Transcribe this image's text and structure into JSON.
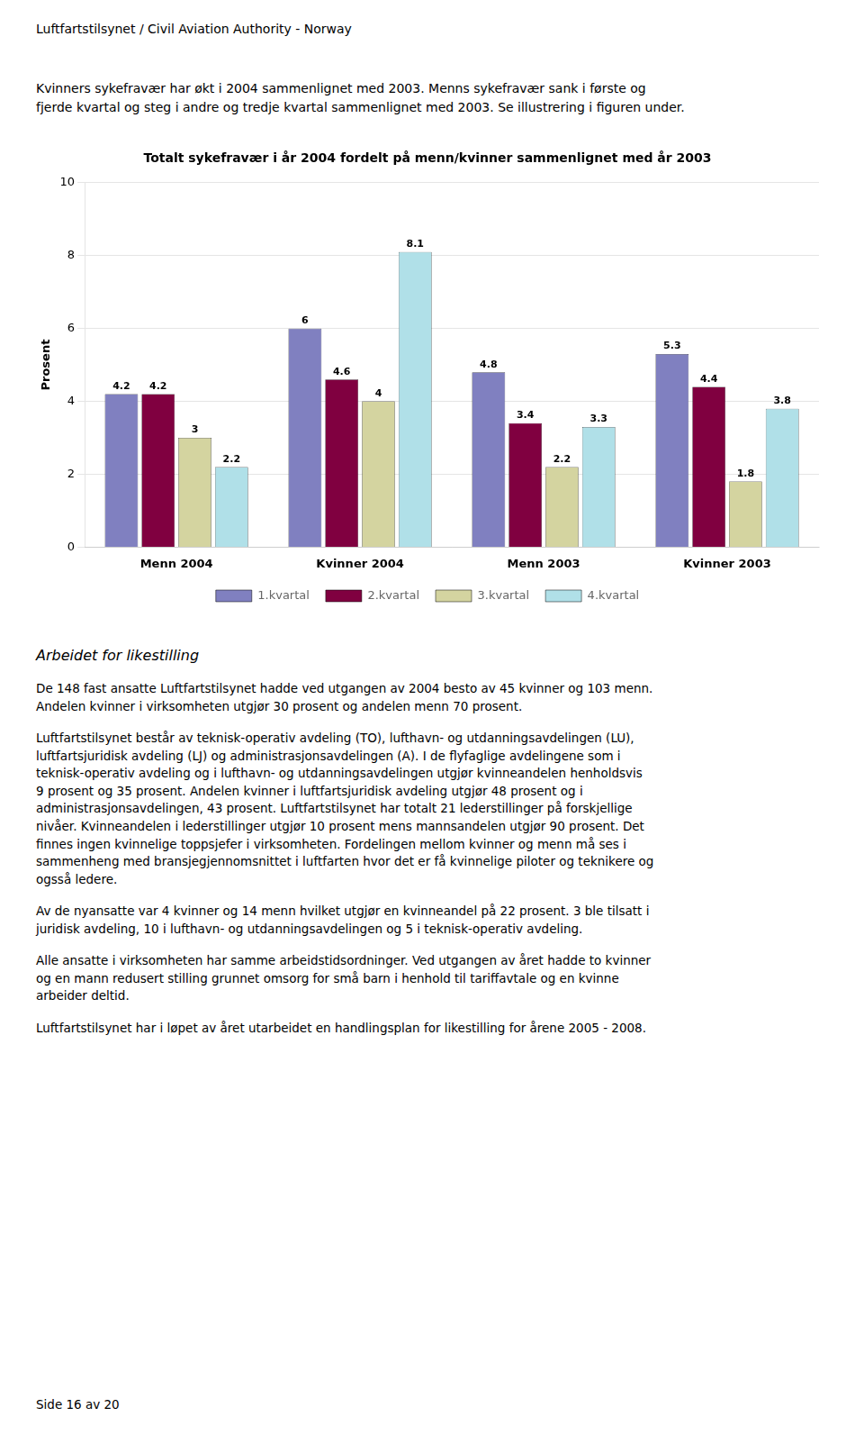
{
  "header": "Luftfartstilsynet / Civil Aviation Authority - Norway",
  "intro_text": "Kvinners sykefravær har økt i 2004 sammenlignet med 2003. Menns sykefravær sank i første og\nfjerde kvartal og steg i andre og tredje kvartal sammenlignet med 2003. Se illustrering i figuren under.",
  "chart_data": {
    "type": "bar",
    "title": "Totalt sykefravær i år 2004 fordelt på menn/kvinner sammenlignet med år 2003",
    "ylabel": "Prosent",
    "categories": [
      "Menn 2004",
      "Kvinner 2004",
      "Menn 2003",
      "Kvinner 2003"
    ],
    "series": [
      {
        "name": "1.kvartal",
        "color": "#8080c0",
        "values": [
          4.2,
          6.0,
          4.8,
          5.3
        ]
      },
      {
        "name": "2.kvartal",
        "color": "#800040",
        "values": [
          4.2,
          4.6,
          3.4,
          4.4
        ]
      },
      {
        "name": "3.kvartal",
        "color": "#d4d4a0",
        "values": [
          3.0,
          4.0,
          2.2,
          1.8
        ]
      },
      {
        "name": "4.kvartal",
        "color": "#b0e0e8",
        "values": [
          2.2,
          8.1,
          3.3,
          3.8
        ]
      }
    ],
    "ylim": [
      0,
      10
    ],
    "yticks": [
      0,
      2,
      4,
      6,
      8,
      10
    ],
    "grid": true,
    "legend": "bottom",
    "data_labels": true
  },
  "section_heading": "Arbeidet for likestilling",
  "paragraphs": [
    "De 148 fast ansatte Luftfartstilsynet hadde ved utgangen av 2004 besto av 45 kvinner og 103 menn.\nAndelen kvinner i virksomheten utgjør 30 prosent og andelen menn 70 prosent.",
    "Luftfartstilsynet består av teknisk-operativ avdeling (TO), lufthavn- og utdanningsavdelingen (LU),\nluftfartsjuridisk avdeling (LJ) og administrasjonsavdelingen (A). I de flyfaglige avdelingene som i\nteknisk-operativ avdeling og i lufthavn- og utdanningsavdelingen utgjør kvinneandelen henholdsvis\n9 prosent og 35 prosent. Andelen kvinner i luftfartsjuridisk avdeling utgjør 48 prosent og i\nadministrasjonsavdelingen, 43 prosent. Luftfartstilsynet har totalt 21 lederstillinger på forskjellige\nnivåer. Kvinneandelen i lederstillinger utgjør 10 prosent mens mannsandelen utgjør 90 prosent. Det\nfinnes ingen kvinnelige toppsjefer i virksomheten. Fordelingen mellom kvinner og menn må ses i\nsammenheng med bransjegjennomsnittet i luftfarten hvor det er få kvinnelige piloter og teknikere og\nogsså ledere.",
    "Av de nyansatte var 4 kvinner og 14 menn hvilket utgjør en kvinneandel på 22 prosent. 3 ble tilsatt i\njuridisk avdeling, 10 i lufthavn- og utdanningsavdelingen og 5 i teknisk-operativ avdeling.",
    "Alle ansatte i virksomheten har samme arbeidstidsordninger. Ved utgangen av året hadde to kvinner\nog en mann redusert stilling grunnet omsorg for små barn i henhold til tariffavtale og en kvinne\narbeider deltid.",
    "Luftfartstilsynet har i løpet av året utarbeidet en handlingsplan for likestilling for årene 2005 - 2008."
  ],
  "footer": "Side 16 av 20"
}
